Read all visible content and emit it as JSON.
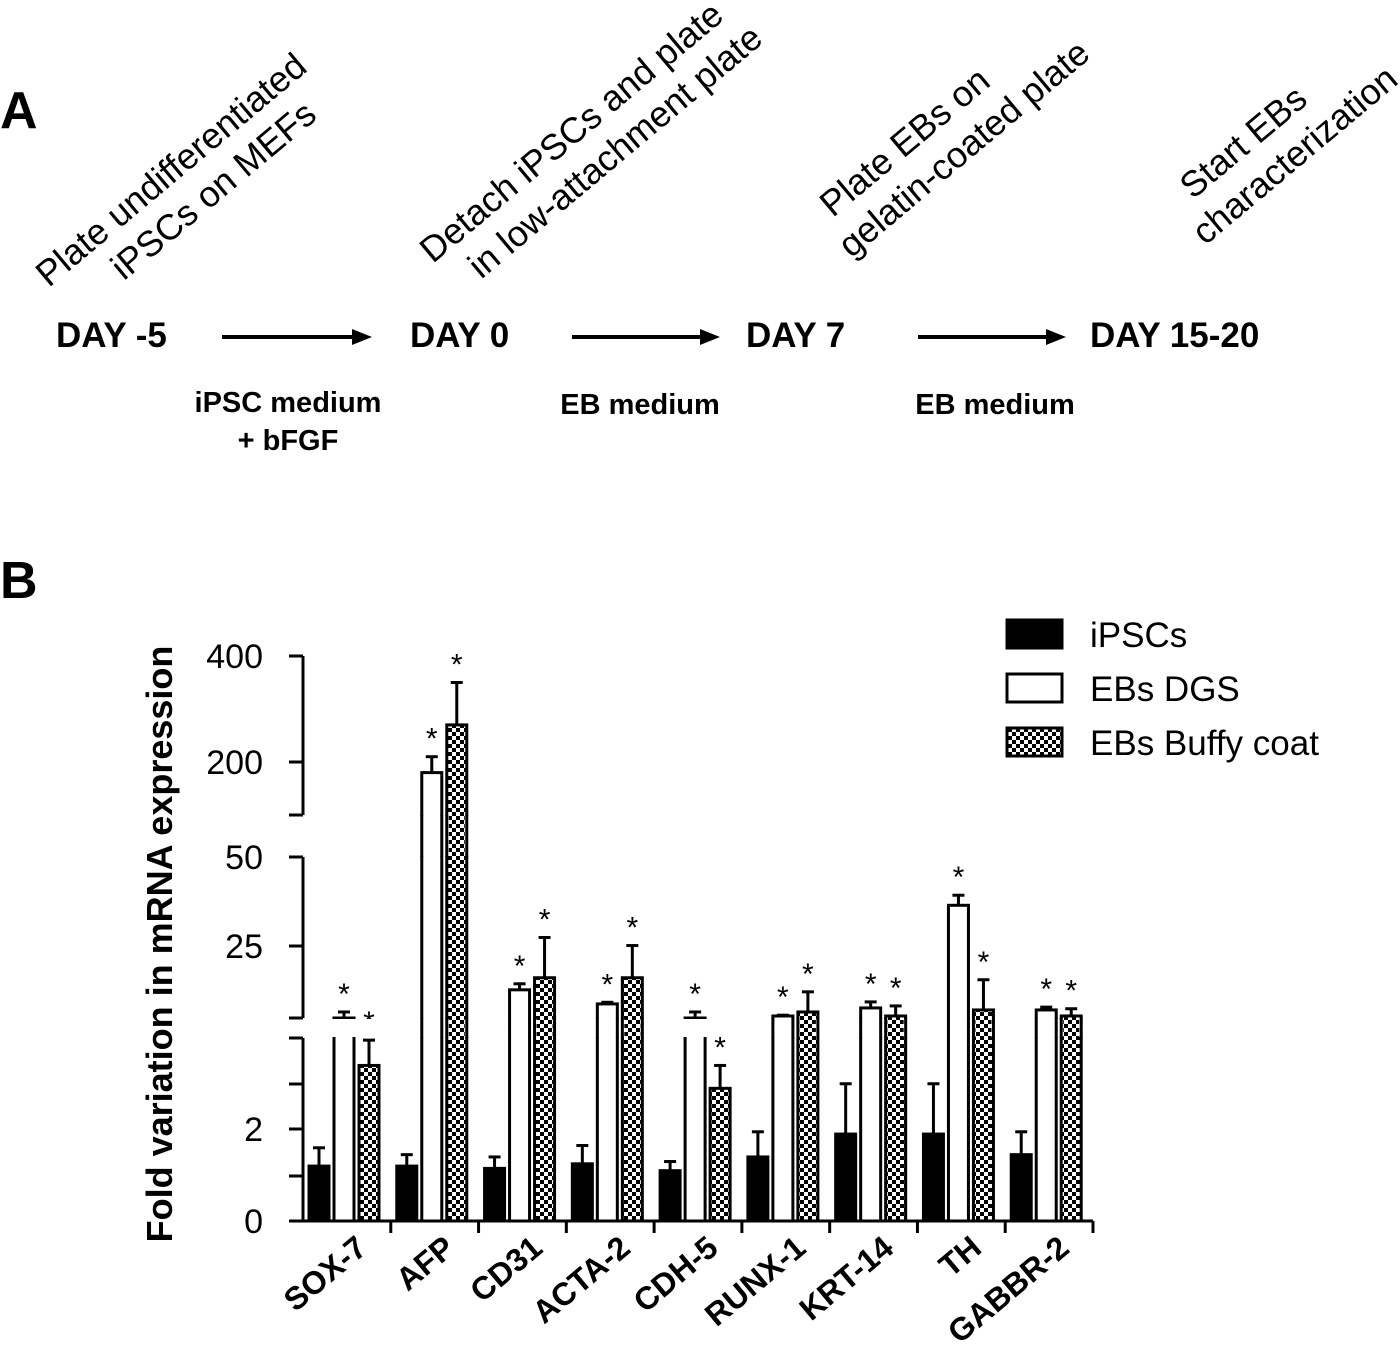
{
  "panel_a": {
    "label": "A",
    "steps": [
      {
        "day": "DAY -5",
        "desc": [
          "Plate undifferentiated",
          "iPSCs on MEFs"
        ]
      },
      {
        "day": "DAY 0",
        "desc": [
          "Detach iPSCs and plate",
          "in low-attachment plate"
        ]
      },
      {
        "day": "DAY 7",
        "desc": [
          "Plate EBs on",
          "gelatin-coated plate"
        ]
      },
      {
        "day": "DAY 15-20",
        "desc": [
          "Start EBs",
          "characterization"
        ]
      }
    ],
    "media": [
      [
        "iPSC medium",
        "+ bFGF"
      ],
      [
        "EB medium"
      ],
      [
        "EB medium"
      ]
    ]
  },
  "panel_b_label": "B",
  "chart_data": {
    "type": "bar",
    "title": "",
    "xlabel": "",
    "ylabel": "Fold variation in mRNA expression",
    "y_axis": "broken",
    "y_segments": [
      {
        "range": [
          0,
          4
        ],
        "ticks": [
          0,
          2
        ],
        "tick_labels": [
          "0",
          "2"
        ]
      },
      {
        "range": [
          10,
          50
        ],
        "ticks": [
          25,
          50
        ],
        "tick_labels": [
          "25",
          "50"
        ]
      },
      {
        "range": [
          100,
          400
        ],
        "ticks": [
          200,
          400
        ],
        "tick_labels": [
          "200",
          "400"
        ]
      }
    ],
    "categories": [
      "SOX-7",
      "AFP",
      "CD31",
      "ACTA-2",
      "CDH-5",
      "RUNX-1",
      "KRT-14",
      "TH",
      "GABBR-2"
    ],
    "legend_position": "top-right",
    "series": [
      {
        "name": "iPSCs",
        "pattern": "solid",
        "values": [
          1.2,
          1.2,
          1.15,
          1.25,
          1.1,
          1.4,
          1.9,
          1.9,
          1.45
        ],
        "errors": [
          0.4,
          0.25,
          0.25,
          0.4,
          0.2,
          0.55,
          1.1,
          1.1,
          0.5
        ],
        "significant": [
          false,
          false,
          false,
          false,
          false,
          false,
          false,
          false,
          false
        ]
      },
      {
        "name": "EBs DGS",
        "pattern": "open",
        "values": [
          10,
          180,
          17,
          13.5,
          10,
          10.5,
          12.5,
          38,
          12
        ],
        "errors": [
          1.5,
          30,
          1.5,
          0.4,
          1.5,
          0.2,
          1.5,
          2.5,
          0.7
        ],
        "significant": [
          true,
          true,
          true,
          true,
          true,
          true,
          true,
          true,
          true
        ]
      },
      {
        "name": "EBs Buffy coat",
        "pattern": "checkered",
        "values": [
          3.4,
          270,
          20,
          20,
          2.9,
          11.5,
          10.5,
          12,
          10.5
        ],
        "errors": [
          1.1,
          80,
          10,
          8,
          0.5,
          5,
          2.5,
          7.5,
          1.8
        ],
        "significant": [
          true,
          true,
          true,
          true,
          true,
          true,
          true,
          true,
          true
        ]
      }
    ],
    "significance_marker": "*"
  },
  "colors": {
    "ink": "#000000",
    "paper": "#ffffff"
  }
}
